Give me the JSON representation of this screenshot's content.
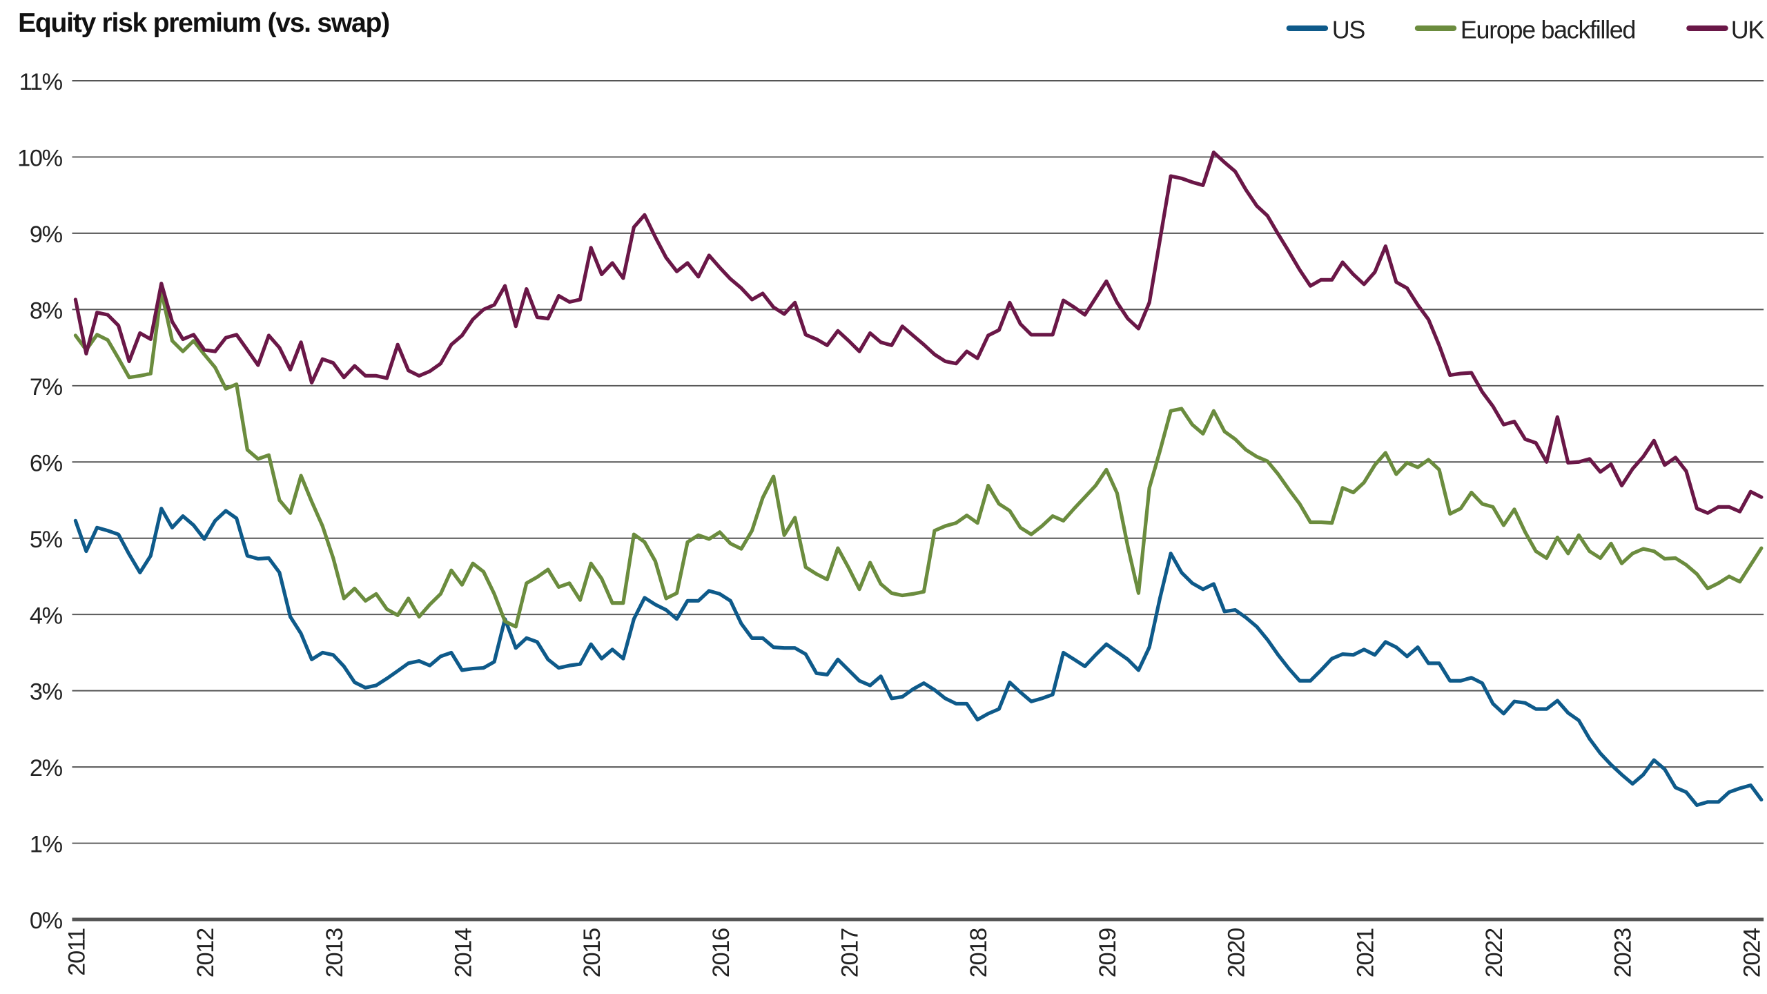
{
  "chart_data": {
    "type": "line",
    "title": "Equity risk premium (vs. swap)",
    "xlabel": "",
    "ylabel": "",
    "ylim": [
      0,
      11
    ],
    "y_tick_labels": [
      "0%",
      "1%",
      "2%",
      "3%",
      "4%",
      "5%",
      "6%",
      "7%",
      "8%",
      "9%",
      "10%",
      "11%"
    ],
    "x_tick_labels": [
      "2011",
      "2012",
      "2013",
      "2014",
      "2015",
      "2016",
      "2017",
      "2018",
      "2019",
      "2020",
      "2021",
      "2022",
      "2023",
      "2024"
    ],
    "grid": "horizontal",
    "legend_position": "top-right",
    "x": [
      "2011-01",
      "2011-02",
      "2011-03",
      "2011-04",
      "2011-05",
      "2011-06",
      "2011-07",
      "2011-08",
      "2011-09",
      "2011-10",
      "2011-11",
      "2011-12",
      "2012-01",
      "2012-02",
      "2012-03",
      "2012-04",
      "2012-05",
      "2012-06",
      "2012-07",
      "2012-08",
      "2012-09",
      "2012-10",
      "2012-11",
      "2012-12",
      "2013-01",
      "2013-02",
      "2013-03",
      "2013-04",
      "2013-05",
      "2013-06",
      "2013-07",
      "2013-08",
      "2013-09",
      "2013-10",
      "2013-11",
      "2013-12",
      "2014-01",
      "2014-02",
      "2014-03",
      "2014-04",
      "2014-05",
      "2014-06",
      "2014-07",
      "2014-08",
      "2014-09",
      "2014-10",
      "2014-11",
      "2014-12",
      "2015-01",
      "2015-02",
      "2015-03",
      "2015-04",
      "2015-05",
      "2015-06",
      "2015-07",
      "2015-08",
      "2015-09",
      "2015-10",
      "2015-11",
      "2015-12",
      "2016-01",
      "2016-02",
      "2016-03",
      "2016-04",
      "2016-05",
      "2016-06",
      "2016-07",
      "2016-08",
      "2016-09",
      "2016-10",
      "2016-11",
      "2016-12",
      "2017-01",
      "2017-02",
      "2017-03",
      "2017-04",
      "2017-05",
      "2017-06",
      "2017-07",
      "2017-08",
      "2017-09",
      "2017-10",
      "2017-11",
      "2017-12",
      "2018-01",
      "2018-02",
      "2018-03",
      "2018-04",
      "2018-05",
      "2018-06",
      "2018-07",
      "2018-08",
      "2018-09",
      "2018-10",
      "2018-11",
      "2018-12",
      "2019-01",
      "2019-02",
      "2019-03",
      "2019-04",
      "2019-05",
      "2019-06",
      "2019-07",
      "2019-08",
      "2019-09",
      "2019-10",
      "2019-11",
      "2019-12",
      "2020-01",
      "2020-02",
      "2020-03",
      "2020-04",
      "2020-05",
      "2020-06",
      "2020-07",
      "2020-08",
      "2020-09",
      "2020-10",
      "2020-11",
      "2020-12",
      "2021-01",
      "2021-02",
      "2021-03",
      "2021-04",
      "2021-05",
      "2021-06",
      "2021-07",
      "2021-08",
      "2021-09",
      "2021-10",
      "2021-11",
      "2021-12",
      "2022-01",
      "2022-02",
      "2022-03",
      "2022-04",
      "2022-05",
      "2022-06",
      "2022-07",
      "2022-08",
      "2022-09",
      "2022-10",
      "2022-11",
      "2022-12",
      "2023-01",
      "2023-02",
      "2023-03",
      "2023-04",
      "2023-05",
      "2023-06",
      "2023-07",
      "2023-08",
      "2023-09",
      "2023-10",
      "2023-11",
      "2023-12",
      "2024-01",
      "2024-02"
    ],
    "series": [
      {
        "name": "US",
        "color": "#0e5a8a",
        "values": [
          5.23,
          4.83,
          5.14,
          5.1,
          5.05,
          4.79,
          4.55,
          4.77,
          5.39,
          5.14,
          5.29,
          5.17,
          4.99,
          5.23,
          5.36,
          5.26,
          4.77,
          4.73,
          4.74,
          4.55,
          3.97,
          3.75,
          3.41,
          3.5,
          3.47,
          3.32,
          3.11,
          3.04,
          3.07,
          3.16,
          3.26,
          3.36,
          3.39,
          3.33,
          3.45,
          3.5,
          3.27,
          3.29,
          3.3,
          3.38,
          3.94,
          3.56,
          3.69,
          3.64,
          3.41,
          3.3,
          3.33,
          3.35,
          3.61,
          3.42,
          3.54,
          3.42,
          3.94,
          4.22,
          4.13,
          4.06,
          3.94,
          4.18,
          4.18,
          4.31,
          4.27,
          4.18,
          3.88,
          3.69,
          3.69,
          3.57,
          3.56,
          3.56,
          3.48,
          3.23,
          3.21,
          3.41,
          3.27,
          3.13,
          3.07,
          3.19,
          2.9,
          2.92,
          3.02,
          3.1,
          3.01,
          2.9,
          2.83,
          2.83,
          2.62,
          2.7,
          2.76,
          3.11,
          2.98,
          2.86,
          2.9,
          2.95,
          3.5,
          3.41,
          3.32,
          3.47,
          3.61,
          3.51,
          3.41,
          3.27,
          3.57,
          4.22,
          4.8,
          4.55,
          4.41,
          4.33,
          4.4,
          4.04,
          4.06,
          3.96,
          3.84,
          3.67,
          3.47,
          3.29,
          3.13,
          3.13,
          3.27,
          3.42,
          3.48,
          3.47,
          3.54,
          3.47,
          3.64,
          3.57,
          3.45,
          3.57,
          3.36,
          3.36,
          3.13,
          3.13,
          3.17,
          3.1,
          2.83,
          2.7,
          2.86,
          2.84,
          2.76,
          2.76,
          2.87,
          2.71,
          2.61,
          2.37,
          2.18,
          2.03,
          1.9,
          1.78,
          1.9,
          2.09,
          1.97,
          1.73,
          1.67,
          1.5,
          1.54,
          1.54,
          1.67,
          1.72,
          1.76,
          1.57
        ]
      },
      {
        "name": "Europe backfilled",
        "color": "#6b8c3e",
        "values": [
          7.66,
          7.47,
          7.67,
          7.6,
          7.36,
          7.11,
          7.13,
          7.16,
          8.24,
          7.59,
          7.45,
          7.59,
          7.41,
          7.24,
          6.96,
          7.02,
          6.16,
          6.04,
          6.09,
          5.5,
          5.33,
          5.82,
          5.48,
          5.16,
          4.74,
          4.21,
          4.34,
          4.18,
          4.27,
          4.07,
          3.99,
          4.21,
          3.97,
          4.13,
          4.27,
          4.58,
          4.39,
          4.67,
          4.56,
          4.27,
          3.91,
          3.84,
          4.41,
          4.49,
          4.59,
          4.36,
          4.41,
          4.19,
          4.67,
          4.47,
          4.15,
          4.15,
          5.05,
          4.95,
          4.7,
          4.21,
          4.28,
          4.95,
          5.04,
          4.99,
          5.08,
          4.93,
          4.86,
          5.1,
          5.53,
          5.81,
          5.04,
          5.27,
          4.62,
          4.53,
          4.46,
          4.87,
          4.61,
          4.33,
          4.68,
          4.4,
          4.28,
          4.25,
          4.27,
          4.3,
          5.1,
          5.16,
          5.2,
          5.3,
          5.2,
          5.69,
          5.45,
          5.36,
          5.14,
          5.05,
          5.16,
          5.29,
          5.23,
          5.39,
          5.54,
          5.69,
          5.9,
          5.59,
          4.89,
          4.28,
          5.66,
          6.15,
          6.67,
          6.7,
          6.49,
          6.37,
          6.67,
          6.4,
          6.3,
          6.16,
          6.07,
          6.01,
          5.84,
          5.64,
          5.45,
          5.21,
          5.21,
          5.2,
          5.66,
          5.6,
          5.73,
          5.96,
          6.12,
          5.84,
          5.99,
          5.93,
          6.03,
          5.9,
          5.32,
          5.39,
          5.6,
          5.45,
          5.41,
          5.17,
          5.38,
          5.08,
          4.83,
          4.74,
          5.01,
          4.8,
          5.04,
          4.83,
          4.74,
          4.93,
          4.67,
          4.8,
          4.86,
          4.83,
          4.73,
          4.74,
          4.65,
          4.53,
          4.34,
          4.41,
          4.5,
          4.43,
          4.65,
          4.87
        ]
      },
      {
        "name": "UK",
        "color": "#6a1747",
        "values": [
          8.13,
          7.42,
          7.96,
          7.93,
          7.79,
          7.32,
          7.69,
          7.61,
          8.34,
          7.84,
          7.61,
          7.67,
          7.47,
          7.45,
          7.63,
          7.67,
          7.47,
          7.27,
          7.66,
          7.5,
          7.21,
          7.57,
          7.04,
          7.35,
          7.3,
          7.11,
          7.26,
          7.13,
          7.13,
          7.1,
          7.54,
          7.2,
          7.13,
          7.19,
          7.29,
          7.54,
          7.66,
          7.87,
          8.0,
          8.06,
          8.31,
          7.78,
          8.27,
          7.9,
          7.88,
          8.18,
          8.1,
          8.13,
          8.81,
          8.46,
          8.61,
          8.41,
          9.08,
          9.24,
          8.95,
          8.68,
          8.5,
          8.61,
          8.43,
          8.71,
          8.55,
          8.4,
          8.28,
          8.13,
          8.21,
          8.03,
          7.94,
          8.09,
          7.67,
          7.61,
          7.53,
          7.72,
          7.59,
          7.45,
          7.69,
          7.57,
          7.53,
          7.78,
          7.66,
          7.54,
          7.41,
          7.32,
          7.29,
          7.45,
          7.36,
          7.66,
          7.73,
          8.09,
          7.81,
          7.67,
          7.67,
          7.67,
          8.12,
          8.03,
          7.93,
          8.15,
          8.37,
          8.09,
          7.88,
          7.75,
          8.09,
          8.92,
          9.75,
          9.72,
          9.67,
          9.63,
          10.06,
          9.93,
          9.81,
          9.57,
          9.36,
          9.23,
          8.99,
          8.76,
          8.52,
          8.31,
          8.39,
          8.39,
          8.62,
          8.46,
          8.33,
          8.49,
          8.83,
          8.36,
          8.28,
          8.06,
          7.87,
          7.53,
          7.14,
          7.16,
          7.17,
          6.92,
          6.73,
          6.49,
          6.53,
          6.3,
          6.25,
          6.0,
          6.59,
          5.99,
          6.0,
          6.04,
          5.87,
          5.97,
          5.69,
          5.91,
          6.07,
          6.28,
          5.96,
          6.06,
          5.88,
          5.39,
          5.33,
          5.41,
          5.41,
          5.35,
          5.61,
          5.54
        ]
      }
    ]
  }
}
